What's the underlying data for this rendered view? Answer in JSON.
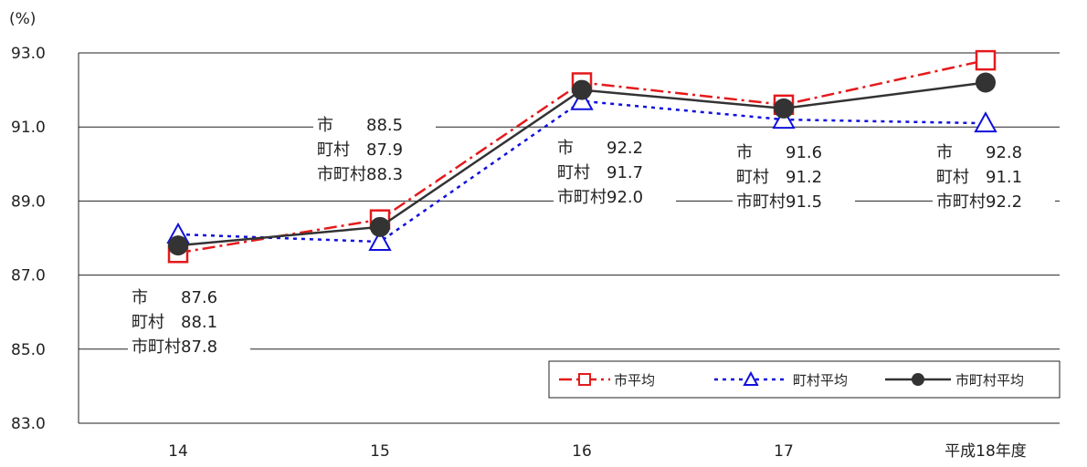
{
  "chart_data": {
    "type": "line",
    "unit_label": "(%)",
    "categories": [
      "14",
      "15",
      "16",
      "17",
      "平成18年度"
    ],
    "ylim": [
      83.0,
      93.0
    ],
    "yticks": [
      "93.0",
      "91.0",
      "89.0",
      "87.0",
      "85.0",
      "83.0"
    ],
    "grid": true,
    "legend_position": "bottom-right",
    "series": [
      {
        "name": "市平均",
        "color": "#e41a1c",
        "marker": "square-open",
        "line": "dashdot",
        "values": [
          87.6,
          88.5,
          92.2,
          91.6,
          92.8
        ]
      },
      {
        "name": "町村平均",
        "color": "#1010dd",
        "marker": "triangle-open",
        "line": "dotted",
        "values": [
          88.1,
          87.9,
          91.7,
          91.2,
          91.1
        ]
      },
      {
        "name": "市町村平均",
        "color": "#333333",
        "marker": "circle-filled",
        "line": "solid",
        "values": [
          87.8,
          88.3,
          92.0,
          91.5,
          92.2
        ]
      }
    ],
    "annotations": [
      {
        "lines": [
          "市　　87.6",
          "町村　88.1",
          "市町村87.8"
        ]
      },
      {
        "lines": [
          "市　　88.5",
          "町村　87.9",
          "市町村88.3"
        ]
      },
      {
        "lines": [
          "市　　92.2",
          "町村　91.7",
          "市町村92.0"
        ]
      },
      {
        "lines": [
          "市　　91.6",
          "町村　91.2",
          "市町村91.5"
        ]
      },
      {
        "lines": [
          "市　　92.8",
          "町村　91.1",
          "市町村92.2"
        ]
      }
    ]
  }
}
